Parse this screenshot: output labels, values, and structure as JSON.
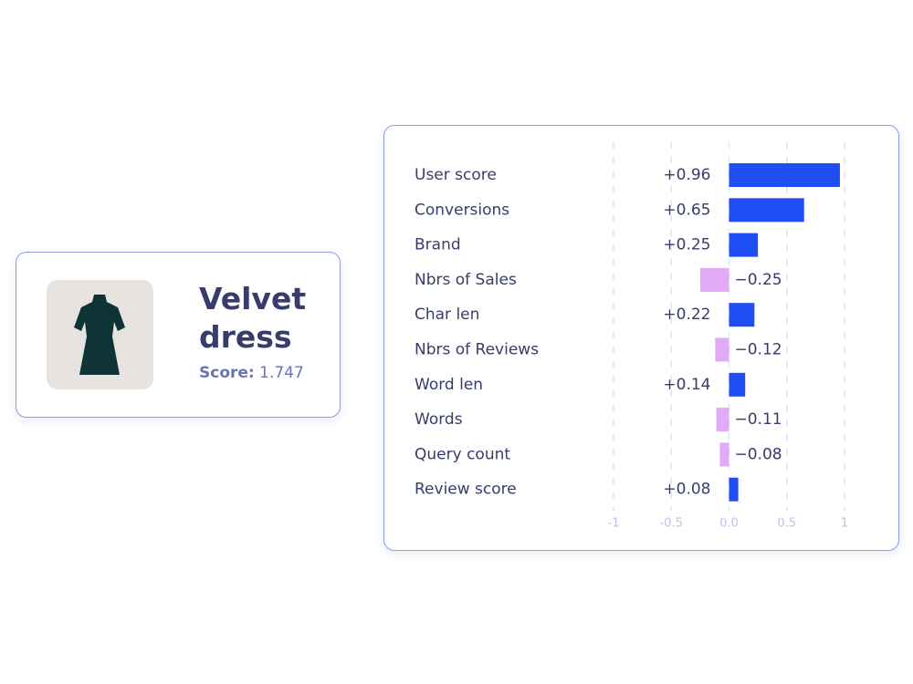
{
  "product": {
    "title": "Velvet dress",
    "score_label": "Score:",
    "score": 1.747
  },
  "chart_data": {
    "type": "barh",
    "categories": [
      "User score",
      "Conversions",
      "Brand",
      "Nbrs of Sales",
      "Char len",
      "Nbrs of Reviews",
      "Word len",
      "Words",
      "Query count",
      "Review score"
    ],
    "values": [
      0.96,
      0.65,
      0.25,
      -0.25,
      0.22,
      -0.12,
      0.14,
      -0.11,
      -0.08,
      0.08
    ],
    "value_labels": [
      "+0.96",
      "+0.65",
      "+0.25",
      "−0.25",
      "+0.22",
      "−0.12",
      "+0.14",
      "−0.11",
      "−0.08",
      "+0.08"
    ],
    "xlim": [
      -1,
      1
    ],
    "xticks": [
      -1,
      -0.5,
      {
        "value": 0,
        "label": "0.0"
      },
      0.5,
      1
    ],
    "grid": true,
    "colors": {
      "positive": "#1f4ef5",
      "negative": "#e2a9f6"
    }
  }
}
